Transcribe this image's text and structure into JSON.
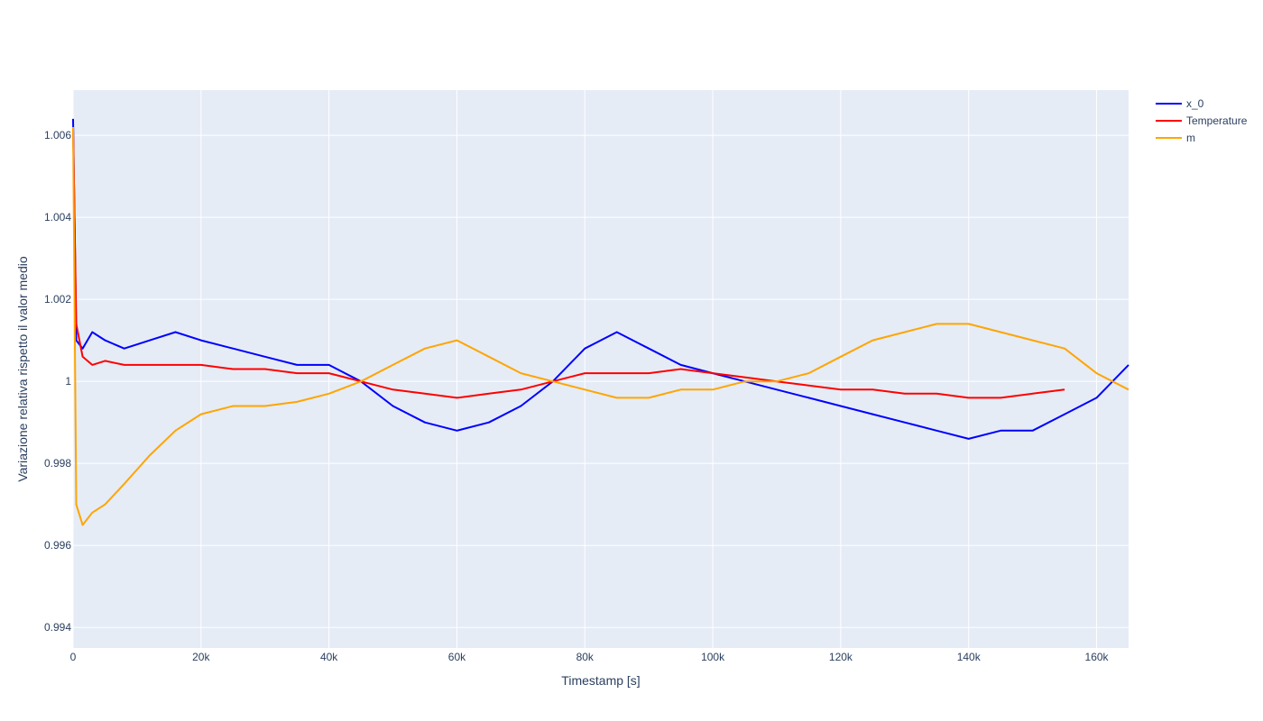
{
  "chart_data": {
    "type": "line",
    "title": "",
    "xlabel": "Timestamp [s]",
    "ylabel": "Variazione relativa rispetto il valor medio",
    "xlim": [
      0,
      165000
    ],
    "ylim": [
      0.9935,
      1.0071
    ],
    "x_ticks": [
      0,
      20000,
      40000,
      60000,
      80000,
      100000,
      120000,
      140000,
      160000
    ],
    "x_tick_labels": [
      "0",
      "20k",
      "40k",
      "60k",
      "80k",
      "100k",
      "120k",
      "140k",
      "160k"
    ],
    "y_ticks": [
      0.994,
      0.996,
      0.998,
      1,
      1.002,
      1.004,
      1.006
    ],
    "y_tick_labels": [
      "0.994",
      "0.996",
      "0.998",
      "1",
      "1.002",
      "1.004",
      "1.006"
    ],
    "grid": true,
    "plot_background": "#E5ECF6",
    "grid_color": "#ffffff",
    "legend_position": "top-right",
    "series": [
      {
        "name": "x_0",
        "color": "#0000FF",
        "x": [
          0,
          500,
          1500,
          3000,
          5000,
          8000,
          12000,
          16000,
          20000,
          25000,
          30000,
          35000,
          40000,
          45000,
          50000,
          55000,
          60000,
          65000,
          70000,
          75000,
          80000,
          85000,
          90000,
          95000,
          100000,
          105000,
          110000,
          115000,
          120000,
          125000,
          130000,
          135000,
          140000,
          145000,
          150000,
          155000,
          160000,
          165000
        ],
        "values": [
          1.0064,
          1.001,
          1.0008,
          1.0012,
          1.001,
          1.0008,
          1.001,
          1.0012,
          1.001,
          1.0008,
          1.0006,
          1.0004,
          1.0004,
          1.0,
          0.9994,
          0.999,
          0.9988,
          0.999,
          0.9994,
          1.0,
          1.0008,
          1.0012,
          1.0008,
          1.0004,
          1.0002,
          1.0,
          0.9998,
          0.9996,
          0.9994,
          0.9992,
          0.999,
          0.9988,
          0.9986,
          0.9988,
          0.9988,
          0.9992,
          0.9996,
          1.0004
        ]
      },
      {
        "name": "Temperature",
        "color": "#FF0000",
        "x": [
          0,
          500,
          1500,
          3000,
          5000,
          8000,
          12000,
          16000,
          20000,
          25000,
          30000,
          35000,
          40000,
          45000,
          50000,
          55000,
          60000,
          65000,
          70000,
          75000,
          80000,
          85000,
          90000,
          95000,
          100000,
          105000,
          110000,
          115000,
          120000,
          125000,
          130000,
          135000,
          140000,
          145000,
          150000,
          155000
        ],
        "values": [
          1.0062,
          1.0014,
          1.0006,
          1.0004,
          1.0005,
          1.0004,
          1.0004,
          1.0004,
          1.0004,
          1.0003,
          1.0003,
          1.0002,
          1.0002,
          1.0,
          0.9998,
          0.9997,
          0.9996,
          0.9997,
          0.9998,
          1.0,
          1.0002,
          1.0002,
          1.0002,
          1.0003,
          1.0002,
          1.0001,
          1.0,
          0.9999,
          0.9998,
          0.9998,
          0.9997,
          0.9997,
          0.9996,
          0.9996,
          0.9997,
          0.9998
        ]
      },
      {
        "name": "m",
        "color": "#FFA500",
        "x": [
          0,
          500,
          1500,
          3000,
          5000,
          8000,
          12000,
          16000,
          20000,
          25000,
          30000,
          35000,
          40000,
          45000,
          50000,
          55000,
          60000,
          65000,
          70000,
          75000,
          80000,
          85000,
          90000,
          95000,
          100000,
          105000,
          110000,
          115000,
          120000,
          125000,
          130000,
          135000,
          140000,
          145000,
          150000,
          155000,
          160000,
          165000
        ],
        "values": [
          1.0062,
          0.997,
          0.9965,
          0.9968,
          0.997,
          0.9975,
          0.9982,
          0.9988,
          0.9992,
          0.9994,
          0.9994,
          0.9995,
          0.9997,
          1.0,
          1.0004,
          1.0008,
          1.001,
          1.0006,
          1.0002,
          1.0,
          0.9998,
          0.9996,
          0.9996,
          0.9998,
          0.9998,
          1.0,
          1.0,
          1.0002,
          1.0006,
          1.001,
          1.0012,
          1.0014,
          1.0014,
          1.0012,
          1.001,
          1.0008,
          1.0002,
          0.9998
        ]
      }
    ]
  }
}
